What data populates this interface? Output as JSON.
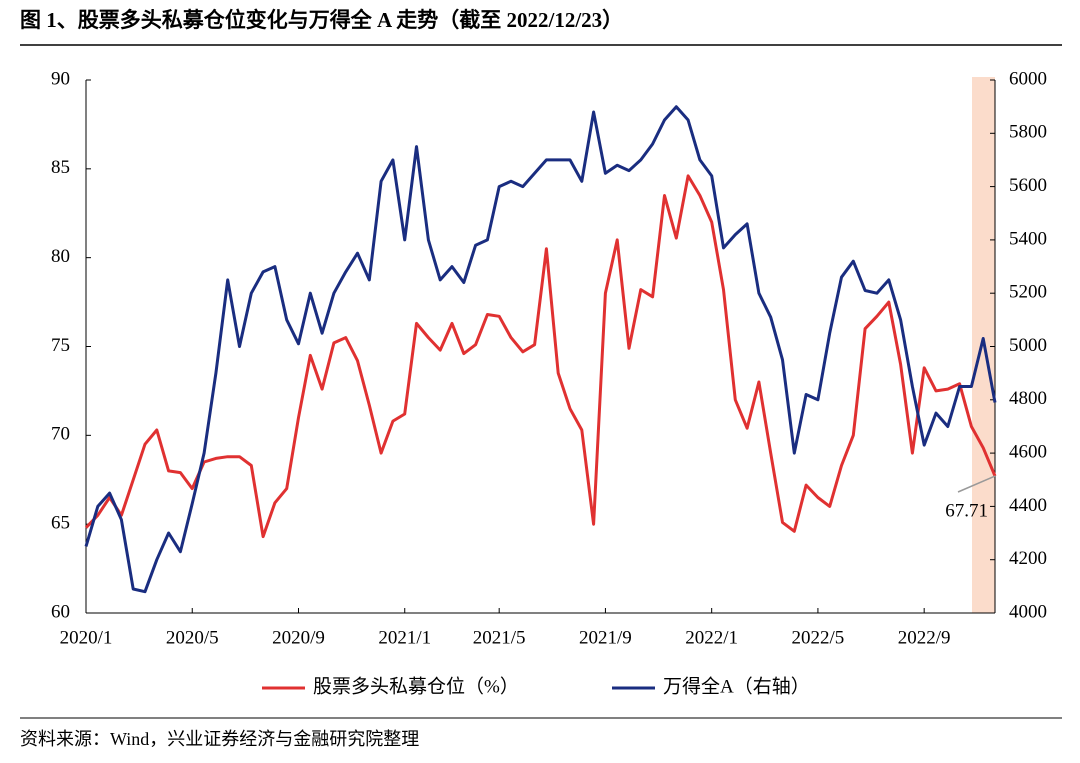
{
  "title": "图 1、股票多头私募仓位变化与万得全 A 走势（截至 2022/12/23）",
  "source": "资料来源：Wind，兴业证券经济与金融研究院整理",
  "chart_data": {
    "type": "line",
    "categories": [
      "2020/1",
      null,
      null,
      null,
      null,
      null,
      null,
      null,
      null,
      "2020/5",
      null,
      null,
      null,
      null,
      null,
      null,
      null,
      null,
      "2020/9",
      null,
      null,
      null,
      null,
      null,
      null,
      null,
      null,
      "2021/1",
      null,
      null,
      null,
      null,
      null,
      null,
      null,
      "2021/5",
      null,
      null,
      null,
      null,
      null,
      null,
      null,
      null,
      "2021/9",
      null,
      null,
      null,
      null,
      null,
      null,
      null,
      null,
      "2022/1",
      null,
      null,
      null,
      null,
      null,
      null,
      null,
      null,
      "2022/5",
      null,
      null,
      null,
      null,
      null,
      null,
      null,
      null,
      "2022/9",
      null,
      null,
      null,
      null,
      null,
      null
    ],
    "series": [
      {
        "name": "股票多头私募仓位（%）",
        "color": "#e03131",
        "values": [
          64.8,
          65.5,
          66.5,
          65.5,
          67.5,
          69.5,
          70.3,
          68,
          67.9,
          67,
          68.5,
          68.7,
          68.8,
          68.8,
          68.3,
          64.3,
          66.2,
          67,
          71,
          74.5,
          72.6,
          75.2,
          75.5,
          74.2,
          71.7,
          69,
          70.8,
          71.2,
          76.3,
          75.5,
          74.8,
          76.3,
          74.6,
          75.1,
          76.8,
          76.7,
          75.5,
          74.7,
          75.1,
          80.5,
          73.5,
          71.5,
          70.3,
          65,
          78,
          81,
          74.9,
          78.2,
          77.8,
          83.5,
          81.1,
          84.6,
          83.5,
          82,
          78.2,
          72,
          70.4,
          73,
          69,
          65.1,
          64.6,
          67.2,
          66.5,
          66,
          68.3,
          70,
          76,
          76.7,
          77.5,
          74,
          69,
          73.8,
          72.5,
          72.6,
          72.9,
          70.5,
          69.3,
          67.71
        ]
      },
      {
        "name": "万得全A（右轴）",
        "color": "#1a2d80",
        "axis": "y2",
        "values": [
          4250,
          4400,
          4450,
          4350,
          4090,
          4080,
          4200,
          4300,
          4230,
          4410,
          4600,
          4900,
          5250,
          5000,
          5200,
          5280,
          5300,
          5100,
          5010,
          5200,
          5050,
          5200,
          5280,
          5350,
          5250,
          5620,
          5700,
          5400,
          5750,
          5400,
          5250,
          5300,
          5240,
          5380,
          5400,
          5600,
          5620,
          5600,
          5650,
          5700,
          5700,
          5700,
          5620,
          5880,
          5650,
          5680,
          5660,
          5700,
          5760,
          5850,
          5900,
          5850,
          5700,
          5640,
          5370,
          5420,
          5460,
          5200,
          5110,
          4950,
          4600,
          4820,
          4800,
          5050,
          5260,
          5320,
          5210,
          5200,
          5250,
          5100,
          4850,
          4630,
          4750,
          4700,
          4850,
          4850,
          5030,
          4790
        ]
      }
    ],
    "ylim": [
      60,
      90
    ],
    "yticks": [
      60,
      65,
      70,
      75,
      80,
      85,
      90
    ],
    "y2lim": [
      4000,
      6000
    ],
    "y2ticks": [
      4000,
      4200,
      4400,
      4600,
      4800,
      5000,
      5200,
      5400,
      5600,
      5800,
      6000
    ],
    "annotation": "67.71",
    "legend": "bottom"
  }
}
